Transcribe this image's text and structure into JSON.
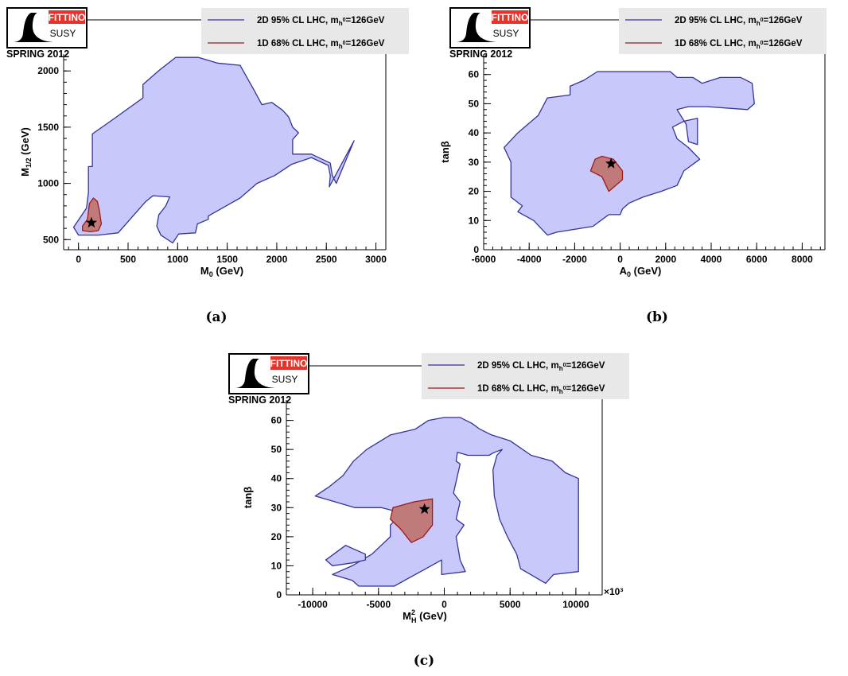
{
  "logo": {
    "brand": "FITTINO",
    "sub": "SUSY",
    "season": "SPRING 2012"
  },
  "legend": {
    "entry_2d": "2D 95% CL LHC, m",
    "entry_1d": "1D 68% CL LHC, m",
    "sub_h": "h",
    "sup_0": "0",
    "suffix": "=126GeV"
  },
  "colors": {
    "fill_95": "#c8c8fa",
    "edge_95": "#333399",
    "fill_68": "#c07a7a",
    "edge_68": "#a01818",
    "legend_bg": "#e8e8e8"
  },
  "chart_data": [
    {
      "type": "area",
      "caption": "(a)",
      "xlabel": "M",
      "xlabel_sub": "0",
      "xlabel_unit": " (GeV)",
      "ylabel": "M",
      "ylabel_sub": "1/2",
      "ylabel_unit": " (GeV)",
      "xlim": [
        -150,
        3100
      ],
      "ylim": [
        410,
        2150
      ],
      "xticks": [
        0,
        500,
        1000,
        1500,
        2000,
        2500,
        3000
      ],
      "yticks": [
        500,
        1000,
        1500,
        2000
      ],
      "series": [
        {
          "name": "2D 95% CL LHC, m_h0=126GeV",
          "points": [
            [
              140,
              1150
            ],
            [
              140,
              1440
            ],
            [
              350,
              1570
            ],
            [
              650,
              1760
            ],
            [
              650,
              1880
            ],
            [
              820,
              2010
            ],
            [
              980,
              2120
            ],
            [
              1210,
              2120
            ],
            [
              1400,
              2070
            ],
            [
              1630,
              2050
            ],
            [
              1770,
              1830
            ],
            [
              1850,
              1700
            ],
            [
              1950,
              1720
            ],
            [
              2060,
              1650
            ],
            [
              2120,
              1590
            ],
            [
              2160,
              1500
            ],
            [
              2220,
              1450
            ],
            [
              2160,
              1390
            ],
            [
              2160,
              1260
            ],
            [
              2350,
              1260
            ],
            [
              2540,
              1180
            ],
            [
              2560,
              1070
            ],
            [
              2600,
              1000
            ],
            [
              2780,
              1380
            ],
            [
              2530,
              970
            ],
            [
              2540,
              1070
            ],
            [
              2520,
              1160
            ],
            [
              2350,
              1230
            ],
            [
              2150,
              1170
            ],
            [
              1980,
              1070
            ],
            [
              1800,
              1000
            ],
            [
              1630,
              870
            ],
            [
              1450,
              780
            ],
            [
              1310,
              710
            ],
            [
              1310,
              680
            ],
            [
              1200,
              640
            ],
            [
              1180,
              560
            ],
            [
              1010,
              550
            ],
            [
              950,
              470
            ],
            [
              830,
              540
            ],
            [
              790,
              620
            ],
            [
              810,
              720
            ],
            [
              880,
              800
            ],
            [
              920,
              880
            ],
            [
              750,
              890
            ],
            [
              680,
              840
            ],
            [
              400,
              560
            ],
            [
              200,
              540
            ],
            [
              0,
              540
            ],
            [
              -50,
              610
            ],
            [
              80,
              780
            ],
            [
              100,
              920
            ],
            [
              100,
              1150
            ]
          ]
        },
        {
          "name": "1D 68% CL LHC, m_h0=126GeV",
          "points": [
            [
              150,
              870
            ],
            [
              190,
              840
            ],
            [
              210,
              760
            ],
            [
              230,
              640
            ],
            [
              200,
              580
            ],
            [
              120,
              570
            ],
            [
              40,
              580
            ],
            [
              40,
              620
            ],
            [
              90,
              680
            ],
            [
              110,
              820
            ],
            [
              150,
              870
            ]
          ]
        }
      ],
      "best_fit": [
        130,
        650
      ]
    },
    {
      "type": "area",
      "caption": "(b)",
      "xlabel": "A",
      "xlabel_sub": "0",
      "xlabel_unit": " (GeV)",
      "ylabel": "tanβ",
      "ylabel_sub": "",
      "ylabel_unit": "",
      "xlim": [
        -6000,
        9000
      ],
      "ylim": [
        0,
        67
      ],
      "xticks": [
        -6000,
        -4000,
        -2000,
        0,
        2000,
        4000,
        6000,
        8000
      ],
      "yticks": [
        0,
        10,
        20,
        30,
        40,
        50,
        60
      ],
      "series": [
        {
          "name": "2D 95% CL LHC, m_h0=126GeV",
          "points": [
            [
              -4800,
              30
            ],
            [
              -5100,
              35
            ],
            [
              -4500,
              40
            ],
            [
              -3600,
              46
            ],
            [
              -3200,
              52
            ],
            [
              -2200,
              53
            ],
            [
              -2200,
              56
            ],
            [
              -1600,
              58
            ],
            [
              -1000,
              61
            ],
            [
              2200,
              61
            ],
            [
              2500,
              59
            ],
            [
              3200,
              59
            ],
            [
              3600,
              57
            ],
            [
              4400,
              59
            ],
            [
              5300,
              59
            ],
            [
              5800,
              57
            ],
            [
              5900,
              50
            ],
            [
              5600,
              48
            ],
            [
              3800,
              49
            ],
            [
              3000,
              49
            ],
            [
              2500,
              48
            ],
            [
              2900,
              43
            ],
            [
              3000,
              37
            ],
            [
              3400,
              36
            ],
            [
              3400,
              45
            ],
            [
              2800,
              44
            ],
            [
              2300,
              42
            ],
            [
              2500,
              38
            ],
            [
              3000,
              35
            ],
            [
              3500,
              31
            ],
            [
              2800,
              27
            ],
            [
              2500,
              22
            ],
            [
              1800,
              20
            ],
            [
              1000,
              18
            ],
            [
              400,
              16
            ],
            [
              100,
              14
            ],
            [
              0,
              12
            ],
            [
              -500,
              12
            ],
            [
              -1200,
              8
            ],
            [
              -2800,
              6
            ],
            [
              -3200,
              5
            ],
            [
              -3800,
              10
            ],
            [
              -4500,
              13
            ],
            [
              -4300,
              15
            ],
            [
              -4800,
              18
            ],
            [
              -4800,
              30
            ]
          ]
        },
        {
          "name": "1D 68% CL LHC, m_h0=126GeV",
          "points": [
            [
              -800,
              32
            ],
            [
              -300,
              31
            ],
            [
              100,
              27
            ],
            [
              100,
              24
            ],
            [
              -500,
              20
            ],
            [
              -800,
              25
            ],
            [
              -1300,
              27
            ],
            [
              -1100,
              31
            ],
            [
              -800,
              32
            ]
          ]
        }
      ],
      "best_fit": [
        -400,
        29.5
      ]
    },
    {
      "type": "area",
      "caption": "(c)",
      "xlabel": "M",
      "xlabel_sub": "H",
      "xlabel_sup": "2",
      "xlabel_unit": " (GeV)",
      "ylabel": "tanβ",
      "ylabel_sub": "",
      "ylabel_unit": "",
      "x_multiplier": "×10³",
      "xlim": [
        -12000,
        12000
      ],
      "ylim": [
        0,
        67
      ],
      "xticks": [
        -10000,
        -5000,
        0,
        5000,
        10000
      ],
      "yticks": [
        0,
        10,
        20,
        30,
        40,
        50,
        60
      ],
      "series": [
        {
          "name": "2D 95% CL LHC, m_h0=126GeV",
          "points": [
            [
              -9800,
              34
            ],
            [
              -8800,
              37
            ],
            [
              -7700,
              41
            ],
            [
              -6900,
              46
            ],
            [
              -5900,
              50
            ],
            [
              -4100,
              55
            ],
            [
              -2200,
              57
            ],
            [
              -1200,
              60
            ],
            [
              0,
              61
            ],
            [
              1200,
              61
            ],
            [
              2100,
              59
            ],
            [
              2700,
              57
            ],
            [
              3600,
              55
            ],
            [
              5000,
              53
            ],
            [
              6600,
              48
            ],
            [
              8200,
              46
            ],
            [
              9200,
              42
            ],
            [
              10200,
              40
            ],
            [
              10200,
              8
            ],
            [
              8300,
              7
            ],
            [
              7700,
              4
            ],
            [
              5800,
              9
            ],
            [
              5500,
              14
            ],
            [
              4800,
              20
            ],
            [
              4200,
              26
            ],
            [
              3800,
              34
            ],
            [
              3700,
              43
            ],
            [
              4000,
              48
            ],
            [
              4400,
              50
            ],
            [
              3800,
              49
            ],
            [
              3400,
              48
            ],
            [
              1800,
              48
            ],
            [
              1000,
              49
            ],
            [
              900,
              46
            ],
            [
              1200,
              45
            ],
            [
              700,
              35
            ],
            [
              1200,
              32
            ],
            [
              900,
              26
            ],
            [
              1500,
              24
            ],
            [
              900,
              20
            ],
            [
              1200,
              12
            ],
            [
              1600,
              8
            ],
            [
              -200,
              7
            ],
            [
              -200,
              12
            ],
            [
              -1000,
              10
            ],
            [
              -3800,
              3
            ],
            [
              -6500,
              3
            ],
            [
              -7000,
              5
            ],
            [
              -8500,
              7
            ],
            [
              -8000,
              8
            ],
            [
              -7000,
              10
            ],
            [
              -5500,
              14
            ],
            [
              -4100,
              20
            ],
            [
              -4100,
              24
            ],
            [
              -3200,
              28
            ],
            [
              -3000,
              28
            ],
            [
              -4800,
              30
            ],
            [
              -6800,
              30
            ],
            [
              -8300,
              32
            ],
            [
              -9800,
              34
            ]
          ]
        },
        {
          "name": "1D 68% CL LHC, m_h0=126GeV",
          "points": [
            [
              -3900,
              30
            ],
            [
              -2300,
              32
            ],
            [
              -900,
              33
            ],
            [
              -900,
              24
            ],
            [
              -1600,
              20
            ],
            [
              -2500,
              18
            ],
            [
              -3200,
              22
            ],
            [
              -3400,
              23
            ],
            [
              -4100,
              26
            ],
            [
              -3900,
              30
            ]
          ]
        }
      ],
      "extra_regions": [
        [
          [
            -6000,
            14
          ],
          [
            -7500,
            17
          ],
          [
            -9000,
            12
          ],
          [
            -8500,
            10
          ],
          [
            -7000,
            11
          ],
          [
            -6000,
            12
          ],
          [
            -6000,
            14
          ]
        ]
      ],
      "best_fit": [
        -1500,
        29.5
      ]
    }
  ]
}
